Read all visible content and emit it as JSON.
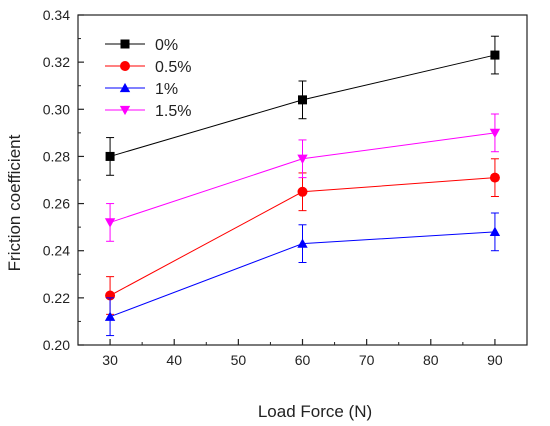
{
  "chart_data": {
    "type": "line",
    "title": "",
    "xlabel": "Load Force (N)",
    "ylabel": "Friction coefficient",
    "x": [
      30,
      60,
      90
    ],
    "xlim": [
      25,
      95
    ],
    "ylim": [
      0.2,
      0.34
    ],
    "x_ticks": [
      30,
      40,
      50,
      60,
      70,
      80,
      90
    ],
    "y_ticks": [
      0.2,
      0.22,
      0.24,
      0.26,
      0.28,
      0.3,
      0.32,
      0.34
    ],
    "x_tick_labels": [
      "30",
      "40",
      "50",
      "60",
      "70",
      "80",
      "90"
    ],
    "y_tick_labels": [
      "0.20",
      "0.22",
      "0.24",
      "0.26",
      "0.28",
      "0.30",
      "0.32",
      "0.34"
    ],
    "grid": false,
    "legend_position": "top-left",
    "series": [
      {
        "name": "0%",
        "color": "#000000",
        "marker": "square",
        "values": [
          0.28,
          0.304,
          0.323
        ],
        "errors": [
          0.008,
          0.008,
          0.008
        ]
      },
      {
        "name": "0.5%",
        "color": "#ff0000",
        "marker": "circle",
        "values": [
          0.221,
          0.265,
          0.271
        ],
        "errors": [
          0.008,
          0.008,
          0.008
        ]
      },
      {
        "name": "1%",
        "color": "#0000ff",
        "marker": "triangle-up",
        "values": [
          0.212,
          0.243,
          0.248
        ],
        "errors": [
          0.008,
          0.008,
          0.008
        ]
      },
      {
        "name": "1.5%",
        "color": "#ff00ff",
        "marker": "triangle-down",
        "values": [
          0.252,
          0.279,
          0.29
        ],
        "errors": [
          0.008,
          0.008,
          0.008
        ]
      }
    ]
  }
}
